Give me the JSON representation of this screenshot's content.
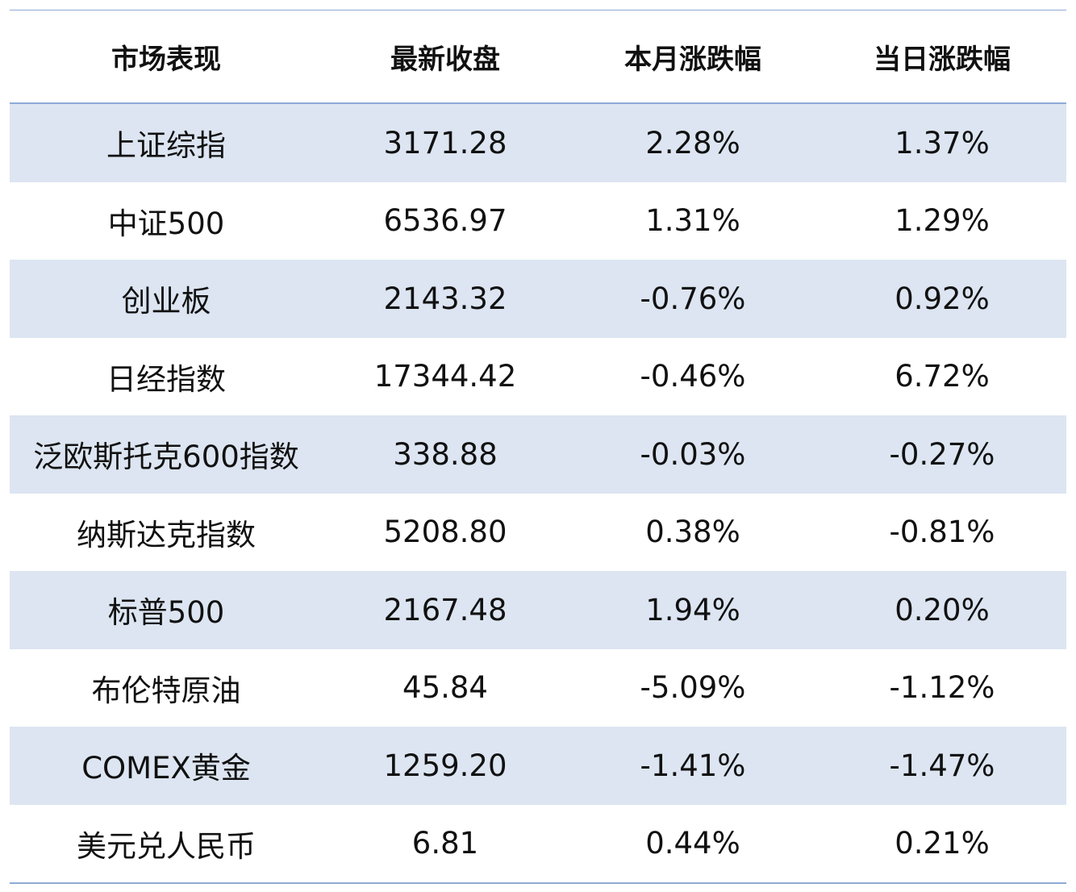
{
  "table": {
    "headers": [
      "市场表现",
      "最新收盘",
      "本月涨跌幅",
      "当日涨跌幅"
    ],
    "rows": [
      [
        "上证综指",
        "3171.28",
        "2.28%",
        "1.37%"
      ],
      [
        "中证500",
        "6536.97",
        "1.31%",
        "1.29%"
      ],
      [
        "创业板",
        "2143.32",
        "-0.76%",
        "0.92%"
      ],
      [
        "日经指数",
        "17344.42",
        "-0.46%",
        "6.72%"
      ],
      [
        "泛欧斯托克600指数",
        "338.88",
        "-0.03%",
        "-0.27%"
      ],
      [
        "纳斯达克指数",
        "5208.80",
        "0.38%",
        "-0.81%"
      ],
      [
        "标普500",
        "2167.48",
        "1.94%",
        "0.20%"
      ],
      [
        "布伦特原油",
        "45.84",
        "-5.09%",
        "-1.12%"
      ],
      [
        "COMEX黄金",
        "1259.20",
        "-1.41%",
        "-1.47%"
      ],
      [
        "美元兑人民币",
        "6.81",
        "0.44%",
        "0.21%"
      ]
    ]
  },
  "colors": {
    "stripe": "#dce5f1",
    "rule": "#8eaad7"
  }
}
